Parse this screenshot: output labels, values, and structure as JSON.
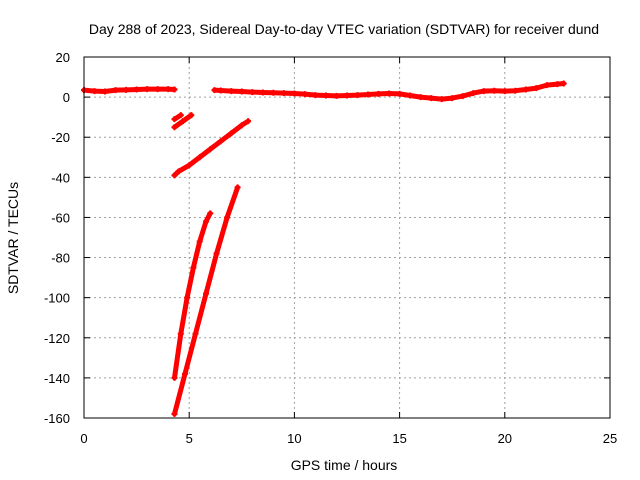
{
  "chart_data": {
    "type": "scatter",
    "title": "Day 288 of 2023, Sidereal Day-to-day VTEC variation (SDTVAR) for receiver dund",
    "xlabel": "GPS time / hours",
    "ylabel": "SDTVAR / TECUs",
    "xlim": [
      0,
      25
    ],
    "ylim": [
      -160,
      20
    ],
    "xticks": [
      0,
      5,
      10,
      15,
      20,
      25
    ],
    "yticks": [
      20,
      0,
      -20,
      -40,
      -60,
      -80,
      -100,
      -120,
      -140,
      -160
    ],
    "grid": true,
    "grid_style": "dotted",
    "series_color": "#ff0000",
    "series": [
      {
        "x": [
          0.0,
          0.5,
          1.0,
          1.5,
          2.0,
          2.5,
          3.0,
          3.5,
          4.0,
          4.3
        ],
        "y": [
          3.5,
          3.0,
          2.8,
          3.5,
          3.6,
          3.8,
          4.0,
          4.0,
          4.0,
          3.8
        ]
      },
      {
        "x": [
          6.2,
          6.5,
          7.0,
          7.5,
          8.0,
          8.5,
          9.0,
          9.5,
          10.0,
          10.5,
          11.0,
          11.5,
          12.0,
          12.5,
          13.0,
          13.5,
          14.0,
          14.5,
          15.0,
          15.5,
          16.0,
          16.5,
          17.0,
          17.5,
          18.0,
          18.5,
          19.0,
          19.5,
          20.0,
          20.5,
          21.0,
          21.5,
          22.0,
          22.5,
          22.8
        ],
        "y": [
          3.5,
          3.3,
          3.0,
          2.8,
          2.5,
          2.3,
          2.2,
          2.0,
          1.8,
          1.5,
          1.0,
          0.8,
          0.6,
          0.8,
          1.0,
          1.3,
          1.6,
          1.8,
          1.6,
          0.8,
          0.0,
          -0.5,
          -1.0,
          -0.5,
          0.5,
          2.0,
          3.0,
          3.2,
          3.0,
          3.2,
          3.8,
          4.5,
          6.0,
          6.5,
          6.8
        ]
      },
      {
        "x": [
          4.3,
          4.6
        ],
        "y": [
          -11,
          -9
        ]
      },
      {
        "x": [
          4.3,
          4.7,
          5.1
        ],
        "y": [
          -15,
          -12,
          -9
        ]
      },
      {
        "x": [
          4.3,
          4.5,
          5.0,
          5.5,
          6.0,
          6.5,
          7.0,
          7.5,
          7.8
        ],
        "y": [
          -39,
          -37,
          -34,
          -30,
          -26,
          -22,
          -18,
          -14,
          -12
        ]
      },
      {
        "x": [
          4.3,
          4.6,
          4.9,
          5.2,
          5.5,
          5.8,
          6.0
        ],
        "y": [
          -140,
          -118,
          -100,
          -85,
          -72,
          -62,
          -58
        ]
      },
      {
        "x": [
          4.3,
          4.8,
          5.3,
          5.8,
          6.3,
          6.8,
          7.3
        ],
        "y": [
          -158,
          -138,
          -118,
          -98,
          -78,
          -60,
          -45
        ]
      }
    ]
  }
}
